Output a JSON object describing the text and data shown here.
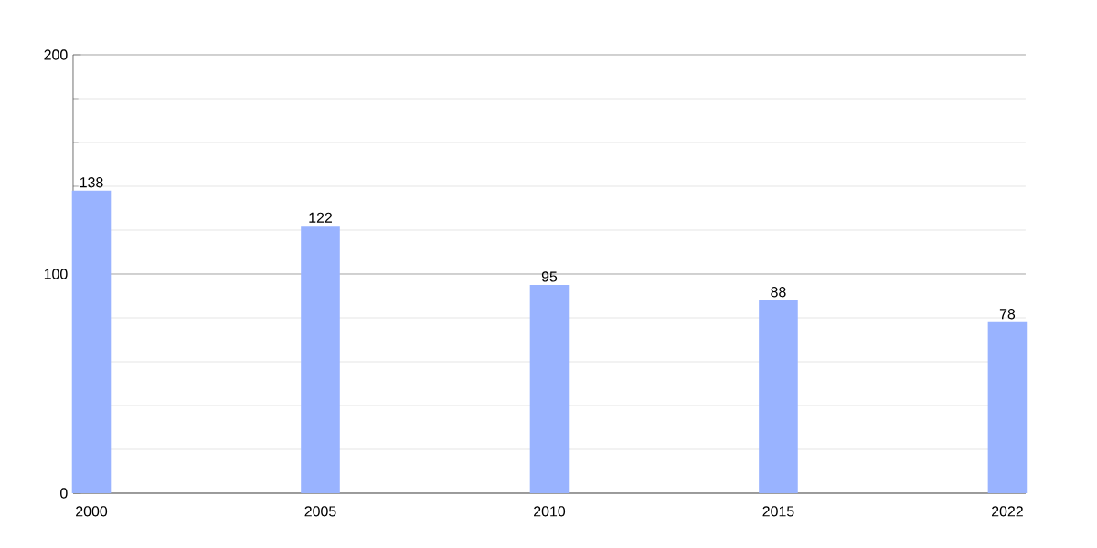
{
  "chart_data": {
    "type": "bar",
    "categories": [
      "2000",
      "2005",
      "2010",
      "2015",
      "2022"
    ],
    "values": [
      138,
      122,
      95,
      88,
      78
    ],
    "color": "#99b3ff",
    "ylim": [
      0,
      200
    ],
    "yticks": [
      0,
      100,
      200
    ],
    "grid": "y",
    "data_labels": true
  }
}
